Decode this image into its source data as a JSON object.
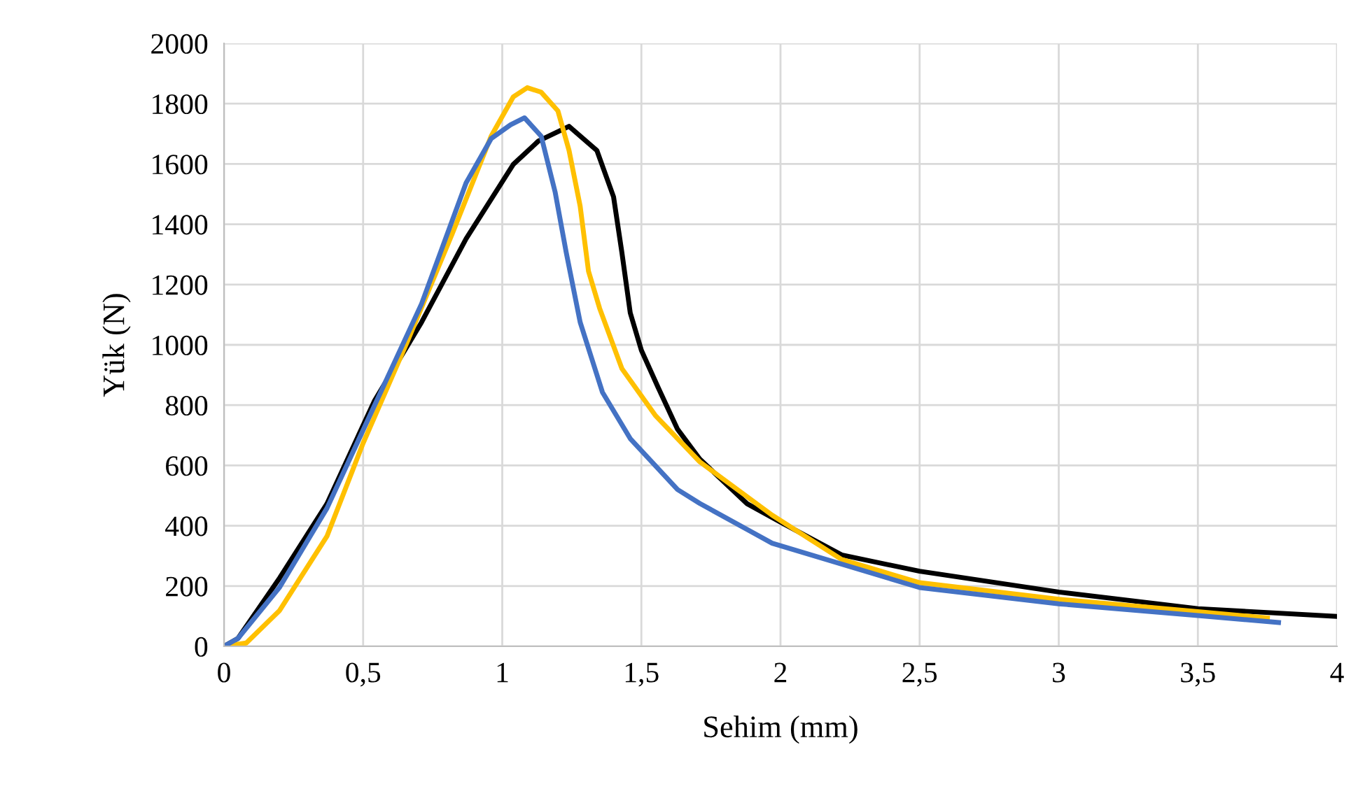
{
  "chart_data": {
    "type": "line",
    "xlabel": "Sehim (mm)",
    "ylabel": "Yük (N)",
    "xlim": [
      0,
      4
    ],
    "ylim": [
      0,
      2000
    ],
    "xticks": [
      0,
      {
        "value": 0.5,
        "label": "0,5"
      },
      1,
      {
        "value": 1.5,
        "label": "1,5"
      },
      2,
      {
        "value": 2.5,
        "label": "2,5"
      },
      3,
      {
        "value": 3.5,
        "label": "3,5"
      },
      4
    ],
    "yticks": [
      0,
      200,
      400,
      600,
      800,
      1000,
      1200,
      1400,
      1600,
      1800,
      2000
    ],
    "grid": true,
    "marker": "none",
    "line_style": "solid",
    "series": [
      {
        "color": "#000000",
        "x": [
          0,
          0.05,
          0.2,
          0.37,
          0.54,
          0.71,
          0.87,
          1.04,
          1.13,
          1.24,
          1.34,
          1.4,
          1.43,
          1.46,
          1.5,
          1.56,
          1.63,
          1.71,
          1.88,
          2.0,
          2.22,
          2.5,
          3.0,
          3.5,
          4.0
        ],
        "values": [
          0,
          26,
          227,
          473,
          813,
          1075,
          1352,
          1599,
          1676,
          1725,
          1645,
          1491,
          1306,
          1106,
          982,
          859,
          720,
          621,
          473,
          412,
          303,
          249,
          180,
          125,
          99
        ]
      },
      {
        "color": "#ffc000",
        "x": [
          0,
          0.08,
          0.2,
          0.37,
          0.5,
          0.66,
          0.82,
          0.96,
          1.04,
          1.09,
          1.14,
          1.2,
          1.24,
          1.28,
          1.31,
          1.35,
          1.43,
          1.55,
          1.71,
          1.97,
          2.22,
          2.5,
          3.0,
          3.5,
          3.75
        ],
        "values": [
          0,
          11,
          119,
          365,
          674,
          1013,
          1368,
          1692,
          1823,
          1853,
          1838,
          1776,
          1645,
          1460,
          1244,
          1121,
          921,
          766,
          612,
          435,
          288,
          211,
          156,
          115,
          94
        ]
      },
      {
        "color": "#4472c4",
        "x": [
          0,
          0.05,
          0.2,
          0.37,
          0.54,
          0.71,
          0.87,
          0.96,
          1.03,
          1.08,
          1.14,
          1.19,
          1.23,
          1.28,
          1.36,
          1.46,
          1.63,
          1.71,
          1.97,
          2.5,
          3.0,
          3.5,
          3.79
        ],
        "values": [
          0,
          26,
          196,
          458,
          797,
          1136,
          1537,
          1684,
          1730,
          1753,
          1692,
          1507,
          1306,
          1075,
          843,
          689,
          520,
          474,
          342,
          195,
          141,
          102,
          79
        ]
      }
    ]
  }
}
